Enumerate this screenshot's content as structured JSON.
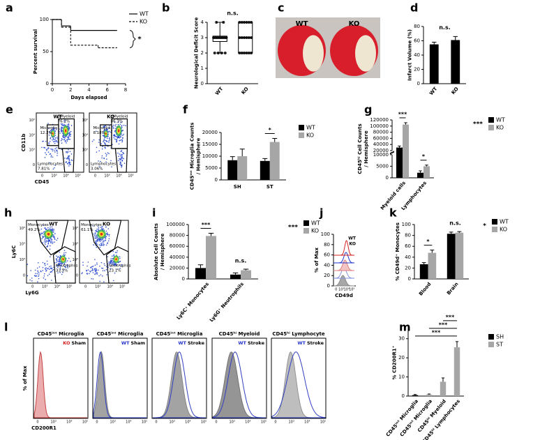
{
  "chart_data": [
    {
      "label": "a",
      "type": "step",
      "xlabel": "Days elapsed",
      "ylabel": "Percent survival",
      "xlim": [
        0,
        8
      ],
      "xticks": [
        0,
        2,
        4,
        6,
        8
      ],
      "ylim": [
        0,
        100
      ],
      "yticks": [
        0,
        50,
        100
      ],
      "series": [
        {
          "name": "WT",
          "color": "#000000",
          "dash": false,
          "x": [
            0,
            1,
            2,
            7
          ],
          "values": [
            100,
            90,
            83,
            83
          ]
        },
        {
          "name": "KO",
          "color": "#000000",
          "dash": true,
          "x": [
            0,
            1,
            2,
            5,
            7
          ],
          "values": [
            100,
            88,
            60,
            56,
            56
          ]
        }
      ],
      "comparison": "*"
    },
    {
      "label": "b",
      "type": "box",
      "ylabel": "Neurological Deficit Score",
      "ylim": [
        0,
        4
      ],
      "yticks": [
        0,
        1,
        2,
        3,
        4
      ],
      "categories": [
        "WT",
        "KO"
      ],
      "boxes": [
        {
          "min": 2,
          "q1": 2.75,
          "median": 3,
          "q3": 3.1,
          "max": 4
        },
        {
          "min": 2,
          "q1": 2,
          "median": 3,
          "q3": 4,
          "max": 4
        }
      ],
      "points": [
        [
          2,
          2,
          2,
          2,
          3,
          3,
          3,
          3,
          3,
          3,
          3,
          3,
          3,
          3,
          3,
          3,
          4,
          4
        ],
        [
          2,
          2,
          2,
          2,
          2,
          2,
          3,
          3,
          3,
          3,
          3,
          3,
          4,
          4,
          4,
          4,
          4,
          4
        ]
      ],
      "comparisons": [
        {
          "text": "n.s.",
          "from": 0,
          "to": 1,
          "bracket": false
        }
      ]
    },
    {
      "label": "c",
      "type": "image",
      "labels": [
        "WT",
        "KO"
      ]
    },
    {
      "label": "d",
      "type": "bar",
      "ylabel": "Infarct Volume (%)",
      "ylim": [
        0,
        80
      ],
      "yticks": [
        0,
        20,
        40,
        60,
        80
      ],
      "categories": [
        "WT",
        "KO"
      ],
      "series": [
        {
          "color": "#000000",
          "values": [
            55,
            61
          ],
          "errors": [
            3,
            5
          ]
        }
      ],
      "comparisons": [
        {
          "text": "n.s.",
          "from": 0,
          "to": 1,
          "bracket": false
        }
      ]
    },
    {
      "label": "e",
      "type": "flow",
      "xlabel": "CD45",
      "ylabel": "CD11b",
      "xtick_labels": [
        "0",
        "10³",
        "10⁴",
        "10⁵"
      ],
      "ytick_labels": [
        "0",
        "10³",
        "10⁴",
        "10⁵"
      ],
      "panels": [
        {
          "title": "WT",
          "gates": [
            {
              "name": "Microglia",
              "label": "12.2%"
            },
            {
              "name": "pMyeloid",
              "label": "76.1%"
            },
            {
              "name": "Lymphocytes",
              "label": "7.81%"
            }
          ]
        },
        {
          "title": "KO",
          "gates": [
            {
              "name": "Microglia",
              "label": "8.18%"
            },
            {
              "name": "pMyeloid",
              "label": "86.3%"
            },
            {
              "name": "Lymphocytes",
              "label": "3.06%"
            }
          ]
        }
      ]
    },
    {
      "label": "f",
      "type": "bar",
      "ylabel": [
        "CD45ⁱⁿᵗ Microglia Counts",
        "/ Hemisphere"
      ],
      "ylim": [
        0,
        20000
      ],
      "yticks": [
        0,
        5000,
        10000,
        15000,
        20000
      ],
      "categories": [
        "SH",
        "ST"
      ],
      "series": [
        {
          "name": "WT",
          "color": "#000000",
          "values": [
            8300,
            8000
          ],
          "errors": [
            1500,
            1000
          ]
        },
        {
          "name": "KO",
          "color": "#a6a6a6",
          "values": [
            10000,
            16000
          ],
          "errors": [
            3000,
            1500
          ]
        }
      ],
      "comparisons": [
        {
          "text": "*",
          "category": 1,
          "bracket": true
        }
      ]
    },
    {
      "label": "g",
      "type": "bar",
      "ylabel": [
        "CD45ʰⁱ Cell Counts",
        "/ Hemisphere"
      ],
      "ylim": [
        0,
        120000
      ],
      "ybreak": [
        10000,
        20000
      ],
      "yticks": [
        0,
        5000,
        10000,
        20000,
        40000,
        60000,
        80000,
        100000,
        120000
      ],
      "categories": [
        "Myeloid cells",
        "Lymphocytes"
      ],
      "series": [
        {
          "name": "WT",
          "color": "#000000",
          "values": [
            30000,
            2200
          ],
          "errors": [
            5000,
            800
          ]
        },
        {
          "name": "KO",
          "color": "#a6a6a6",
          "values": [
            105000,
            5000
          ],
          "errors": [
            6000,
            500
          ]
        }
      ],
      "comparisons": [
        {
          "text": "***",
          "category": 0,
          "bracket": true
        },
        {
          "text": "*",
          "category": 1,
          "bracket": true
        }
      ],
      "legend_note": "***"
    },
    {
      "label": "h",
      "type": "flow",
      "xlabel": "Ly6G",
      "ylabel": "Ly6C",
      "xtick_labels": [
        "0",
        "10³",
        "10⁴",
        "10⁵"
      ],
      "ytick_labels": [
        "0",
        "10³",
        "10⁴",
        "10⁵"
      ],
      "panels": [
        {
          "title": "WT",
          "gates": [
            {
              "name": "Monocytes",
              "label": "49.2%"
            },
            {
              "name": "Neutrophils",
              "label": "33.5%"
            }
          ]
        },
        {
          "title": "KO",
          "gates": [
            {
              "name": "Monocytes",
              "label": "61.1%"
            },
            {
              "name": "Neutrophils",
              "label": "23.1%"
            }
          ]
        }
      ]
    },
    {
      "label": "i",
      "type": "bar",
      "ylabel": [
        "Absolute Cell Counts",
        "/ Hemisphere"
      ],
      "ylim": [
        0,
        100000
      ],
      "yticks": [
        0,
        20000,
        40000,
        60000,
        80000,
        100000
      ],
      "categories": [
        "Ly6C⁺ Monocytes",
        "Ly6G⁺ Neutrophils"
      ],
      "series": [
        {
          "name": "WT",
          "color": "#000000",
          "values": [
            20000,
            8000
          ],
          "errors": [
            6000,
            3000
          ]
        },
        {
          "name": "KO",
          "color": "#a6a6a6",
          "values": [
            79000,
            16000
          ],
          "errors": [
            5000,
            2000
          ]
        }
      ],
      "comparisons": [
        {
          "text": "***",
          "category": 0,
          "bracket": true
        },
        {
          "text": "n.s.",
          "category": 1,
          "bracket": false
        }
      ],
      "legend_note": "***"
    },
    {
      "label": "j",
      "type": "overlay",
      "xlabel": "CD49d",
      "ylabel": "% of Max",
      "ylim": [
        0,
        100
      ],
      "yticks": [
        0,
        20,
        40,
        60,
        80,
        100
      ],
      "xtick_labels": [
        "0",
        "10³",
        "10⁴",
        "10⁵"
      ],
      "series": [
        {
          "name": "WT",
          "color": "#2233cc"
        },
        {
          "name": "KO",
          "color": "#d42020"
        }
      ]
    },
    {
      "label": "k",
      "type": "bar",
      "ylabel": "% CD49d⁺ Monocytes",
      "ylim": [
        0,
        100
      ],
      "yticks": [
        0,
        20,
        40,
        60,
        80,
        100
      ],
      "categories": [
        "Blood",
        "Brain"
      ],
      "series": [
        {
          "name": "WT",
          "color": "#000000",
          "values": [
            27,
            83
          ],
          "errors": [
            3,
            3
          ]
        },
        {
          "name": "KO",
          "color": "#a6a6a6",
          "values": [
            48,
            85
          ],
          "errors": [
            5,
            2
          ]
        }
      ],
      "comparisons": [
        {
          "text": "*",
          "category": 0,
          "bracket": true
        },
        {
          "text": "n.s.",
          "category": 1,
          "bracket": false
        }
      ],
      "legend_note": "*"
    },
    {
      "label": "l",
      "type": "histograms",
      "xlabel": "CD200R1",
      "ylabel": "% of Max",
      "xtick_labels": [
        "0",
        "10³",
        "10⁴",
        "10⁵"
      ],
      "panels": [
        {
          "title": "CD45ⁱⁿᵗ Microglia",
          "group": "KO",
          "condition": "Sham",
          "color": "#d42020"
        },
        {
          "title": "CD45ⁱⁿᵗ Microglia",
          "group": "WT",
          "condition": "Sham",
          "color": "#2233cc"
        },
        {
          "title": "CD45ⁱⁿᵗ Microglia",
          "group": "WT",
          "condition": "Stroke",
          "color": "#2233cc"
        },
        {
          "title": "CD45ʰⁱ Myeloid",
          "group": "WT",
          "condition": "Stroke",
          "color": "#2233cc"
        },
        {
          "title": "CD45ʰⁱ Lymphocyte",
          "group": "WT",
          "condition": "Stroke",
          "color": "#2233cc"
        }
      ]
    },
    {
      "label": "m",
      "type": "bar",
      "ylabel": "% CD200R1⁺",
      "ylim": [
        0,
        35
      ],
      "yticks": [
        0,
        10,
        20,
        30
      ],
      "categories": [
        "CD45ⁱⁿᵗ Microglia",
        "CD45ⁱⁿᵗ Microglia",
        "CD45ʰⁱ Myeloid",
        "CD45ʰⁱ Lymphocytes"
      ],
      "series": [
        {
          "name": "SH",
          "color": "#000000",
          "values": [
            0.5,
            null,
            null,
            null
          ],
          "errors": [
            0.3,
            null,
            null,
            null
          ]
        },
        {
          "name": "ST",
          "color": "#a6a6a6",
          "values": [
            null,
            0.8,
            7.5,
            25.5
          ],
          "errors": [
            null,
            0.3,
            2,
            3
          ]
        }
      ],
      "comparisons": [
        {
          "text": "***",
          "from": 0,
          "to": 3,
          "bracket": true
        },
        {
          "text": "***",
          "from": 1,
          "to": 3,
          "bracket": true
        },
        {
          "text": "***",
          "from": 2,
          "to": 3,
          "bracket": true
        }
      ]
    }
  ]
}
